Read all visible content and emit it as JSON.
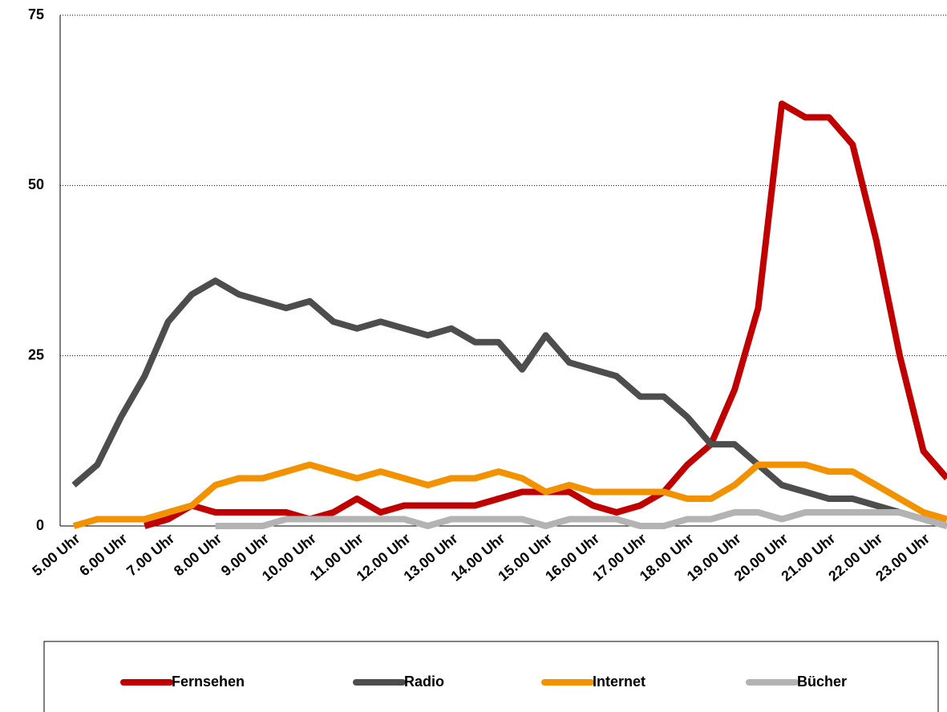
{
  "chart_data": {
    "type": "line",
    "categories": [
      "5.00 Uhr",
      null,
      "6.00 Uhr",
      null,
      "7.00 Uhr",
      null,
      "8.00 Uhr",
      null,
      "9.00 Uhr",
      null,
      "10.00 Uhr",
      null,
      "11.00 Uhr",
      null,
      "12.00 Uhr",
      null,
      "13.00 Uhr",
      null,
      "14.00 Uhr",
      null,
      "15.00 Uhr",
      null,
      "16.00 Uhr",
      null,
      "17.00 Uhr",
      null,
      "18.00 Uhr",
      null,
      "19.00 Uhr",
      null,
      "20.00 Uhr",
      null,
      "21.00 Uhr",
      null,
      "22.00 Uhr",
      null,
      "23.00 Uhr",
      null
    ],
    "series": [
      {
        "name": "Fernsehen",
        "color": "#c00000",
        "values": [
          null,
          null,
          null,
          0,
          1,
          3,
          2,
          2,
          2,
          2,
          1,
          2,
          4,
          2,
          3,
          3,
          3,
          3,
          4,
          5,
          5,
          5,
          3,
          2,
          3,
          5,
          9,
          12,
          20,
          32,
          62,
          60,
          60,
          56,
          42,
          25,
          11,
          7
        ]
      },
      {
        "name": "Radio",
        "color": "#4d4d4d",
        "values": [
          6,
          9,
          16,
          22,
          30,
          34,
          36,
          34,
          33,
          32,
          33,
          30,
          29,
          30,
          29,
          28,
          29,
          27,
          27,
          23,
          28,
          24,
          23,
          22,
          19,
          19,
          16,
          12,
          12,
          9,
          6,
          5,
          4,
          4,
          3,
          2,
          1,
          0
        ]
      },
      {
        "name": "Internet",
        "color": "#f39200",
        "values": [
          0,
          1,
          1,
          1,
          2,
          3,
          6,
          7,
          7,
          8,
          9,
          8,
          7,
          8,
          7,
          6,
          7,
          7,
          8,
          7,
          5,
          6,
          5,
          5,
          5,
          5,
          4,
          4,
          6,
          9,
          9,
          9,
          8,
          8,
          6,
          4,
          2,
          1
        ]
      },
      {
        "name": "Bücher",
        "color": "#b3b3b3",
        "values": [
          null,
          null,
          null,
          null,
          null,
          null,
          0,
          0,
          0,
          1,
          1,
          1,
          1,
          1,
          1,
          0,
          1,
          1,
          1,
          1,
          0,
          1,
          1,
          1,
          0,
          0,
          1,
          1,
          2,
          2,
          1,
          2,
          2,
          2,
          2,
          2,
          1,
          0
        ]
      }
    ],
    "ylim": [
      0,
      75
    ],
    "yticks": [
      0,
      25,
      50,
      75
    ],
    "grid": true
  }
}
